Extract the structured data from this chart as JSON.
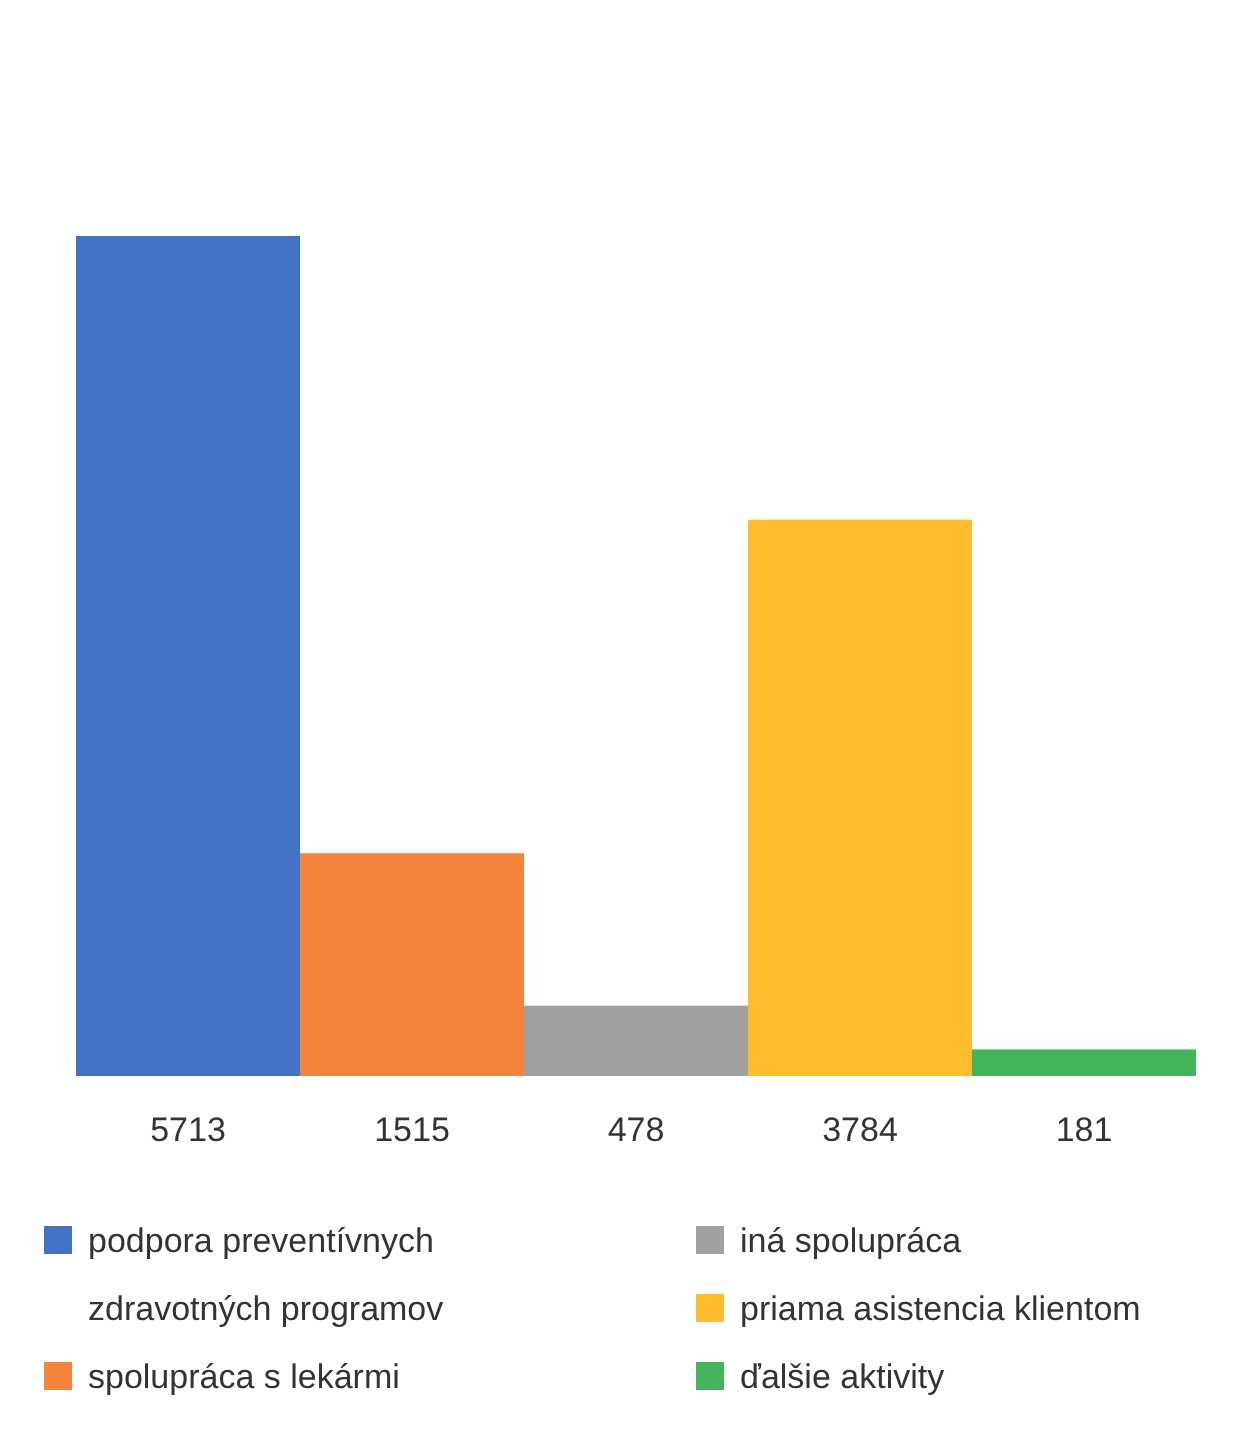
{
  "chart_data": {
    "type": "bar",
    "categories": [
      null,
      null,
      null,
      null,
      null
    ],
    "data_labels": true,
    "stacked": true,
    "legend": "bottom",
    "series": [
      {
        "name": "podpora preventívnych zdravotných programov",
        "color": "#4472c4",
        "values": [
          5713,
          null,
          null,
          null,
          null
        ]
      },
      {
        "name": "spolupráca s lekármi",
        "color": "#f4843c",
        "values": [
          null,
          1515,
          null,
          null,
          null
        ]
      },
      {
        "name": "iná spolupráca",
        "color": "#a0a0a0",
        "values": [
          null,
          null,
          478,
          null,
          null
        ]
      },
      {
        "name": "priama asistencia klientom",
        "color": "#fcbc2c",
        "values": [
          null,
          null,
          null,
          3784,
          null
        ]
      },
      {
        "name": "ďalšie aktivity",
        "color": "#44b45c",
        "values": [
          null,
          null,
          null,
          null,
          181
        ]
      }
    ]
  }
}
